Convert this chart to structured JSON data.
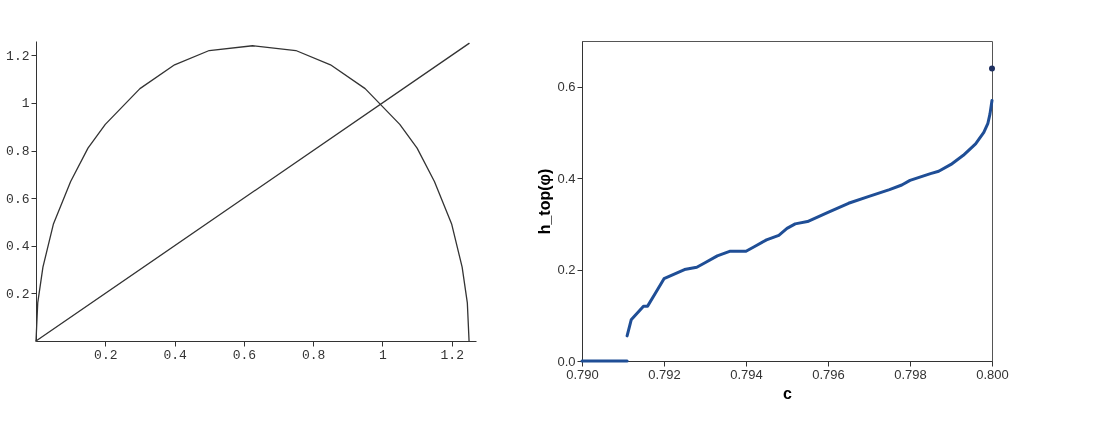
{
  "chart_data": [
    {
      "type": "line",
      "xlim": [
        0,
        1.27
      ],
      "ylim": [
        0,
        1.26
      ],
      "xticks": [
        0.2,
        0.4,
        0.6,
        0.8,
        1,
        1.2
      ],
      "yticks": [
        0.2,
        0.4,
        0.6,
        0.8,
        1,
        1.2
      ],
      "grid": false,
      "series": [
        {
          "color": "#333333",
          "x": [
            0,
            0.005,
            0.02,
            0.05,
            0.1,
            0.15,
            0.2,
            0.3,
            0.4,
            0.5,
            0.625,
            0.75,
            0.85,
            0.95,
            1.05,
            1.1,
            1.15,
            1.2,
            1.23,
            1.245,
            1.25
          ],
          "values": [
            0,
            0.16,
            0.31,
            0.49,
            0.67,
            0.81,
            0.91,
            1.06,
            1.16,
            1.22,
            1.24,
            1.22,
            1.16,
            1.06,
            0.91,
            0.81,
            0.67,
            0.49,
            0.31,
            0.16,
            0
          ]
        },
        {
          "color": "#333333",
          "x": [
            0,
            1.25
          ],
          "values": [
            0,
            1.25
          ]
        }
      ]
    },
    {
      "type": "line",
      "xlabel": "c",
      "ylabel": "h_top(φ)",
      "xlim": [
        0.79,
        0.8
      ],
      "ylim": [
        0,
        0.7
      ],
      "xticks": [
        {
          "value": 0.79,
          "label": "0.790"
        },
        {
          "value": 0.792,
          "label": "0.792"
        },
        {
          "value": 0.794,
          "label": "0.794"
        },
        {
          "value": 0.796,
          "label": "0.796"
        },
        {
          "value": 0.798,
          "label": "0.798"
        },
        {
          "value": 0.8,
          "label": "0.800"
        }
      ],
      "yticks": [
        {
          "value": 0,
          "label": "0.0"
        },
        0.2,
        0.4,
        0.6
      ],
      "grid": false,
      "series": [
        {
          "color": "#1f4e96",
          "x": [
            0.79,
            0.7911
          ],
          "values": [
            0,
            0
          ]
        },
        {
          "color": "#1f4e96",
          "x": [
            0.7911,
            0.7912,
            0.7915,
            0.7916,
            0.7918,
            0.792,
            0.7925,
            0.7928,
            0.793,
            0.7933,
            0.7936,
            0.794,
            0.7942,
            0.7945,
            0.7948,
            0.795,
            0.7952,
            0.7955,
            0.796,
            0.7965,
            0.797,
            0.7975,
            0.7978,
            0.798,
            0.7985,
            0.7987,
            0.799,
            0.7993,
            0.7996,
            0.7998,
            0.7999,
            0.79995,
            0.8
          ],
          "values": [
            0.055,
            0.09,
            0.12,
            0.12,
            0.15,
            0.18,
            0.2,
            0.205,
            0.215,
            0.23,
            0.24,
            0.24,
            0.25,
            0.265,
            0.275,
            0.29,
            0.3,
            0.305,
            0.325,
            0.345,
            0.36,
            0.375,
            0.385,
            0.395,
            0.41,
            0.415,
            0.43,
            0.45,
            0.475,
            0.5,
            0.52,
            0.54,
            0.57
          ]
        },
        {
          "type": "scatter",
          "color": "#1f3060",
          "x": [
            0.8
          ],
          "values": [
            0.64
          ]
        }
      ]
    }
  ]
}
